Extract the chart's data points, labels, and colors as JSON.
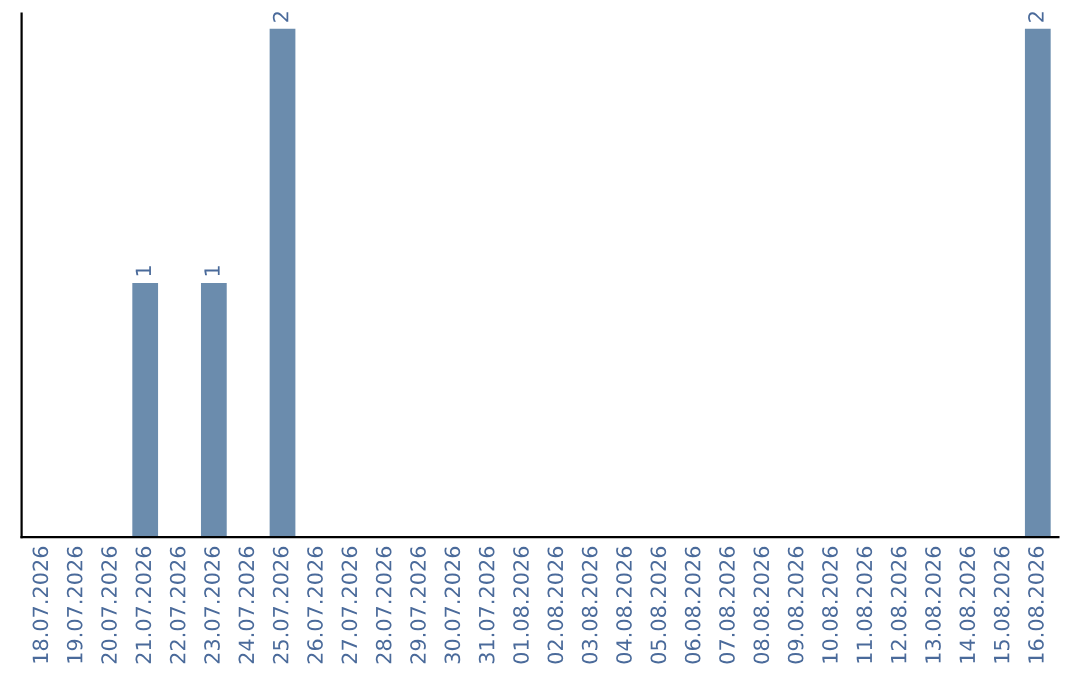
{
  "chart_data": {
    "type": "bar",
    "categories": [
      "18.07.2026",
      "19.07.2026",
      "20.07.2026",
      "21.07.2026",
      "22.07.2026",
      "23.07.2026",
      "24.07.2026",
      "25.07.2026",
      "26.07.2026",
      "27.07.2026",
      "28.07.2026",
      "29.07.2026",
      "30.07.2026",
      "31.07.2026",
      "01.08.2026",
      "02.08.2026",
      "03.08.2026",
      "04.08.2026",
      "05.08.2026",
      "06.08.2026",
      "07.08.2026",
      "08.08.2026",
      "09.08.2026",
      "10.08.2026",
      "11.08.2026",
      "12.08.2026",
      "13.08.2026",
      "14.08.2026",
      "15.08.2026",
      "16.08.2026"
    ],
    "values": [
      0,
      0,
      0,
      1,
      0,
      1,
      0,
      2,
      0,
      0,
      0,
      0,
      0,
      0,
      0,
      0,
      0,
      0,
      0,
      0,
      0,
      0,
      0,
      0,
      0,
      0,
      0,
      0,
      0,
      2
    ],
    "value_labels": [
      null,
      null,
      null,
      "1",
      null,
      "1",
      null,
      "2",
      null,
      null,
      null,
      null,
      null,
      null,
      null,
      null,
      null,
      null,
      null,
      null,
      null,
      null,
      null,
      null,
      null,
      null,
      null,
      null,
      null,
      "2"
    ],
    "color": "#6b8cad",
    "grid": false,
    "legend": false,
    "tick_labels": "x"
  }
}
